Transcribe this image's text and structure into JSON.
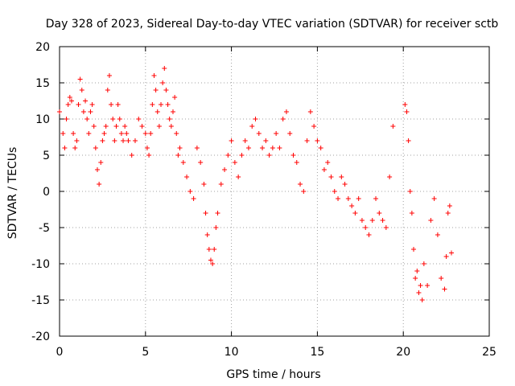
{
  "chart_data": {
    "type": "scatter",
    "title": "Day 328 of 2023, Sidereal Day-to-day VTEC variation (SDTVAR) for receiver sctb",
    "xlabel": "GPS time / hours",
    "ylabel": "SDTVAR / TECUs",
    "xlim": [
      0,
      25
    ],
    "ylim": [
      -20,
      20
    ],
    "x_ticks": [
      0,
      5,
      10,
      15,
      20,
      25
    ],
    "y_ticks": [
      -20,
      -15,
      -10,
      -5,
      0,
      5,
      10,
      15,
      20
    ],
    "x_tick_labels": [
      "0",
      "5",
      "10",
      "15",
      "20",
      "25"
    ],
    "y_tick_labels": [
      "-20",
      "-15",
      "-10",
      "-5",
      "0",
      "5",
      "10",
      "15",
      "20"
    ],
    "grid": true,
    "marker": "plus",
    "color": "#ff0000",
    "series": [
      {
        "name": "sctb",
        "x": [
          0.0,
          0.2,
          0.3,
          0.4,
          0.5,
          0.6,
          0.7,
          0.8,
          0.9,
          1.0,
          1.1,
          1.2,
          1.3,
          1.4,
          1.5,
          1.6,
          1.7,
          1.8,
          1.9,
          2.0,
          2.1,
          2.2,
          2.3,
          2.4,
          2.5,
          2.6,
          2.7,
          2.8,
          2.9,
          3.0,
          3.1,
          3.2,
          3.3,
          3.4,
          3.5,
          3.6,
          3.7,
          3.8,
          3.9,
          4.0,
          4.2,
          4.4,
          4.6,
          4.8,
          5.0,
          5.1,
          5.2,
          5.3,
          5.4,
          5.5,
          5.6,
          5.7,
          5.8,
          5.9,
          6.0,
          6.1,
          6.2,
          6.3,
          6.4,
          6.5,
          6.6,
          6.7,
          6.8,
          6.9,
          7.0,
          7.2,
          7.4,
          7.6,
          7.8,
          8.0,
          8.2,
          8.4,
          8.5,
          8.6,
          8.7,
          8.8,
          8.9,
          9.0,
          9.1,
          9.2,
          9.4,
          9.6,
          9.8,
          10.0,
          10.2,
          10.4,
          10.6,
          10.8,
          11.0,
          11.2,
          11.4,
          11.6,
          11.8,
          12.0,
          12.2,
          12.4,
          12.6,
          12.8,
          13.0,
          13.2,
          13.4,
          13.6,
          13.8,
          14.0,
          14.2,
          14.4,
          14.6,
          14.8,
          15.0,
          15.2,
          15.4,
          15.6,
          15.8,
          16.0,
          16.2,
          16.4,
          16.6,
          16.8,
          17.0,
          17.2,
          17.4,
          17.6,
          17.8,
          18.0,
          18.2,
          18.4,
          18.6,
          18.8,
          19.0,
          19.2,
          19.4,
          20.1,
          20.2,
          20.3,
          20.4,
          20.5,
          20.6,
          20.7,
          20.8,
          20.9,
          21.0,
          21.1,
          21.2,
          21.4,
          21.6,
          21.8,
          22.0,
          22.2,
          22.4,
          22.5,
          22.6,
          22.7,
          22.8
        ],
        "y": [
          11.0,
          8.0,
          6.0,
          10.0,
          12.0,
          13.0,
          12.5,
          8.0,
          6.0,
          7.0,
          12.0,
          15.5,
          14.0,
          11.0,
          12.5,
          10.0,
          8.0,
          11.0,
          12.0,
          9.0,
          6.0,
          3.0,
          1.0,
          4.0,
          7.0,
          8.0,
          9.0,
          14.0,
          16.0,
          12.0,
          10.0,
          7.0,
          9.0,
          12.0,
          10.0,
          8.0,
          7.0,
          9.0,
          8.0,
          7.0,
          5.0,
          7.0,
          10.0,
          9.0,
          8.0,
          6.0,
          5.0,
          8.0,
          12.0,
          16.0,
          14.0,
          11.0,
          9.0,
          12.0,
          15.0,
          17.0,
          14.0,
          12.0,
          10.0,
          9.0,
          11.0,
          13.0,
          8.0,
          5.0,
          6.0,
          4.0,
          2.0,
          0.0,
          -1.0,
          6.0,
          4.0,
          1.0,
          -3.0,
          -6.0,
          -8.0,
          -9.5,
          -10.0,
          -8.0,
          -5.0,
          -3.0,
          1.0,
          3.0,
          5.0,
          7.0,
          4.0,
          2.0,
          5.0,
          7.0,
          6.0,
          9.0,
          10.0,
          8.0,
          6.0,
          7.0,
          5.0,
          6.0,
          8.0,
          6.0,
          10.0,
          11.0,
          8.0,
          5.0,
          4.0,
          1.0,
          0.0,
          7.0,
          11.0,
          9.0,
          7.0,
          6.0,
          3.0,
          4.0,
          2.0,
          0.0,
          -1.0,
          2.0,
          1.0,
          -1.0,
          -2.0,
          -3.0,
          -1.0,
          -4.0,
          -5.0,
          -6.0,
          -4.0,
          -1.0,
          -3.0,
          -4.0,
          -5.0,
          2.0,
          9.0,
          12.0,
          11.0,
          7.0,
          0.0,
          -3.0,
          -8.0,
          -12.0,
          -11.0,
          -14.0,
          -13.0,
          -15.0,
          -10.0,
          -13.0,
          -4.0,
          -1.0,
          -6.0,
          -12.0,
          -13.5,
          -9.0,
          -3.0,
          -2.0,
          -8.5
        ]
      }
    ]
  }
}
